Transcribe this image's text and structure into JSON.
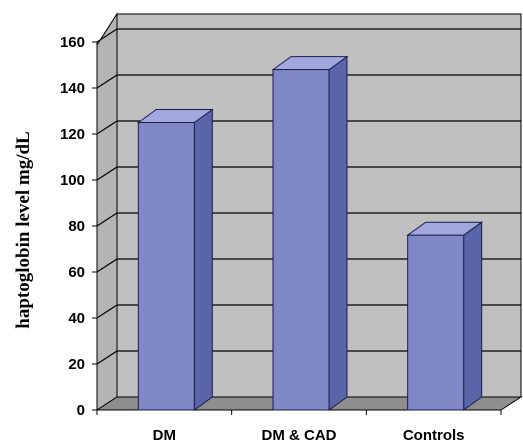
{
  "chart_data": {
    "type": "bar",
    "style": "3d-column",
    "categories": [
      "DM",
      "DM & CAD",
      "Controls"
    ],
    "values": [
      125,
      148,
      76
    ],
    "ylabel": "haptoglobin  level mg/dL",
    "xlabel": "",
    "ylim": [
      0,
      160
    ],
    "yticks": [
      "0",
      "20",
      "40",
      "60",
      "80",
      "100",
      "120",
      "140",
      "160"
    ],
    "grid": true,
    "legend": "none",
    "colors": {
      "bar_front": "#8088c6",
      "bar_side": "#5a64a8",
      "bar_top": "#a2a8de",
      "bar_edge": "#1a1e4a",
      "wall": "#c0c0c0",
      "floor": "#8e8e8e",
      "gridline": "#000000"
    }
  }
}
